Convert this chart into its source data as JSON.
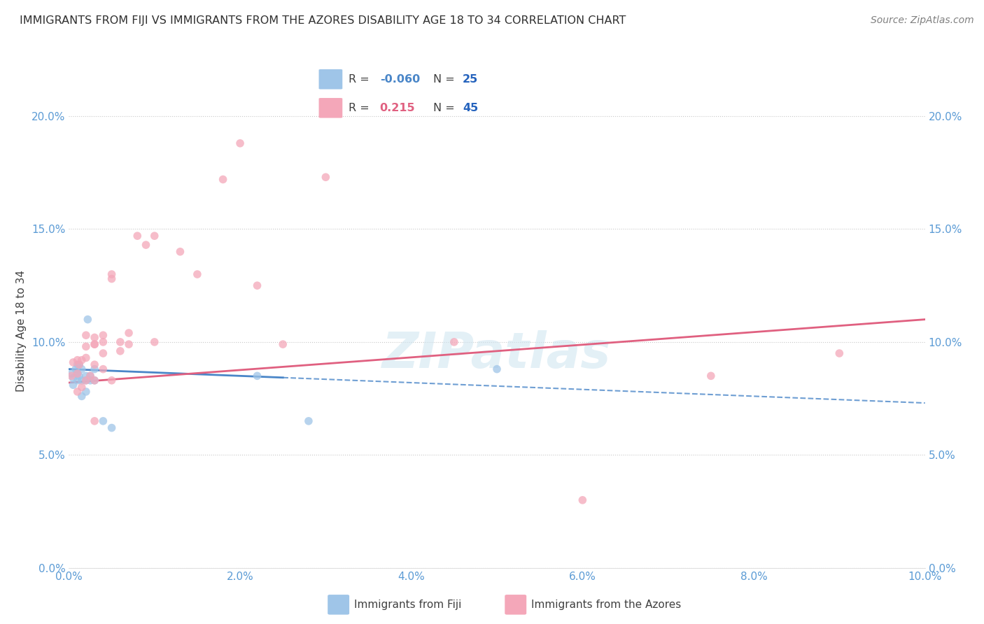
{
  "title": "IMMIGRANTS FROM FIJI VS IMMIGRANTS FROM THE AZORES DISABILITY AGE 18 TO 34 CORRELATION CHART",
  "source": "Source: ZipAtlas.com",
  "ylabel": "Disability Age 18 to 34",
  "xlim": [
    0.0,
    0.1
  ],
  "ylim": [
    0.0,
    0.21
  ],
  "xticks": [
    0.0,
    0.02,
    0.04,
    0.06,
    0.08,
    0.1
  ],
  "yticks": [
    0.0,
    0.05,
    0.1,
    0.15,
    0.2
  ],
  "fiji_R": -0.06,
  "fiji_N": 25,
  "azores_R": 0.215,
  "azores_N": 45,
  "fiji_color": "#9fc5e8",
  "azores_color": "#f4a7b9",
  "fiji_line_color": "#4a86c8",
  "azores_line_color": "#e06080",
  "background_color": "#ffffff",
  "watermark": "ZIPatlas",
  "fiji_scatter_x": [
    0.0003,
    0.0005,
    0.0005,
    0.0008,
    0.001,
    0.001,
    0.001,
    0.0012,
    0.0012,
    0.0015,
    0.0015,
    0.0015,
    0.002,
    0.002,
    0.002,
    0.0022,
    0.0025,
    0.0025,
    0.003,
    0.003,
    0.004,
    0.005,
    0.022,
    0.028,
    0.05
  ],
  "fiji_scatter_y": [
    0.086,
    0.084,
    0.081,
    0.088,
    0.09,
    0.086,
    0.083,
    0.09,
    0.085,
    0.088,
    0.083,
    0.076,
    0.085,
    0.083,
    0.078,
    0.11,
    0.085,
    0.083,
    0.088,
    0.083,
    0.065,
    0.062,
    0.085,
    0.065,
    0.088
  ],
  "azores_scatter_x": [
    0.0003,
    0.0005,
    0.001,
    0.001,
    0.001,
    0.0012,
    0.0015,
    0.0015,
    0.002,
    0.002,
    0.002,
    0.002,
    0.0025,
    0.003,
    0.003,
    0.003,
    0.003,
    0.003,
    0.003,
    0.004,
    0.004,
    0.004,
    0.004,
    0.005,
    0.005,
    0.005,
    0.006,
    0.006,
    0.007,
    0.007,
    0.008,
    0.009,
    0.01,
    0.01,
    0.013,
    0.015,
    0.018,
    0.02,
    0.022,
    0.025,
    0.03,
    0.045,
    0.06,
    0.075,
    0.09
  ],
  "azores_scatter_y": [
    0.085,
    0.091,
    0.092,
    0.086,
    0.078,
    0.09,
    0.092,
    0.08,
    0.103,
    0.098,
    0.093,
    0.083,
    0.085,
    0.102,
    0.099,
    0.099,
    0.09,
    0.083,
    0.065,
    0.103,
    0.1,
    0.095,
    0.088,
    0.128,
    0.13,
    0.083,
    0.1,
    0.096,
    0.104,
    0.099,
    0.147,
    0.143,
    0.147,
    0.1,
    0.14,
    0.13,
    0.172,
    0.188,
    0.125,
    0.099,
    0.173,
    0.1,
    0.03,
    0.085,
    0.095
  ],
  "fiji_line_x0": 0.0,
  "fiji_line_x_solid_end": 0.025,
  "fiji_line_x1": 0.1,
  "fiji_line_y0": 0.088,
  "fiji_line_y1": 0.073,
  "azores_line_x0": 0.0,
  "azores_line_x1": 0.1,
  "azores_line_y0": 0.082,
  "azores_line_y1": 0.11,
  "title_fontsize": 11.5,
  "axis_label_fontsize": 11,
  "tick_fontsize": 11,
  "legend_fontsize": 12,
  "source_fontsize": 10,
  "marker_size": 70,
  "marker_alpha": 0.75
}
